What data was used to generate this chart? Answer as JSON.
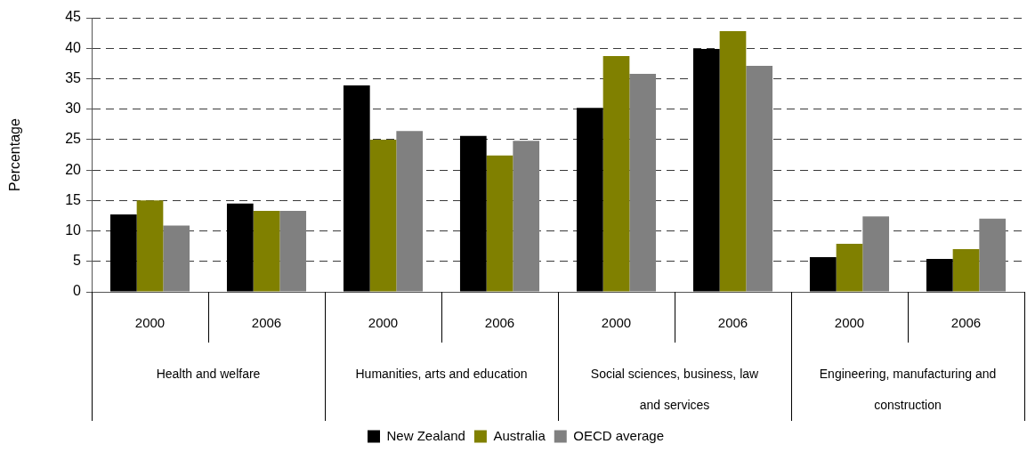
{
  "chart_data": {
    "type": "bar",
    "ylabel": "Percentage",
    "categories": [
      "2000",
      "2006",
      "2000",
      "2006",
      "2000",
      "2006",
      "2000",
      "2006"
    ],
    "annotations": [
      "Health and welfare",
      "Humanities, arts and education",
      "Social sciences, business, law and services",
      "Engineering, manufacturing and construction"
    ],
    "series": [
      {
        "name": "New Zealand",
        "color": "#000000",
        "values": [
          12.7,
          14.5,
          33.9,
          25.6,
          30.2,
          39.9,
          5.7,
          5.4
        ]
      },
      {
        "name": "Australia",
        "color": "#808000",
        "values": [
          15.0,
          13.3,
          25.0,
          22.4,
          38.7,
          42.8,
          7.9,
          7.0
        ]
      },
      {
        "name": "OECD average",
        "color": "#808080",
        "values": [
          10.9,
          13.3,
          26.4,
          24.8,
          35.8,
          37.1,
          12.4,
          12.0
        ]
      }
    ],
    "ylim": [
      0,
      45
    ],
    "yticks": [
      0,
      5,
      10,
      15,
      20,
      25,
      30,
      35,
      40,
      45
    ],
    "grid": "y",
    "legend": "bottom"
  }
}
